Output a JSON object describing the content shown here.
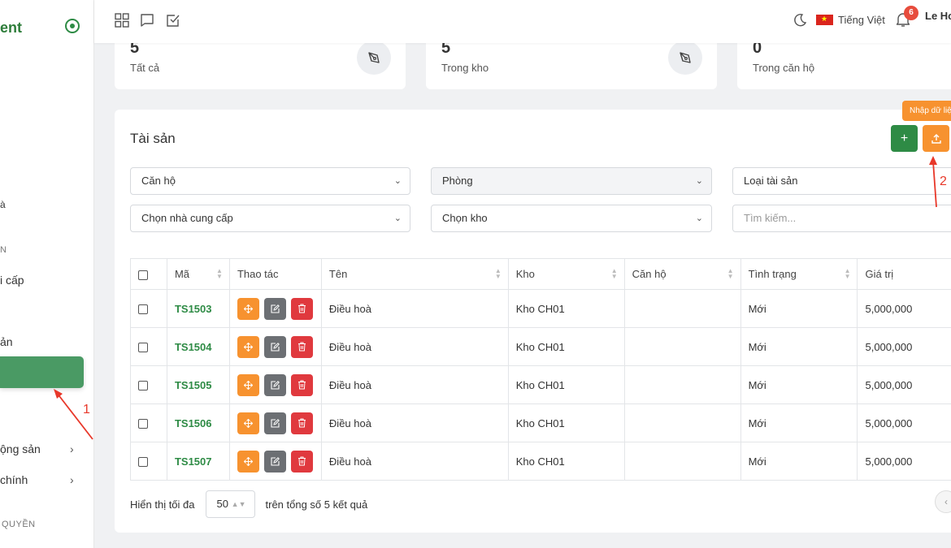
{
  "sidebar": {
    "brand": "ent",
    "items": [
      {
        "label": "à"
      },
      {
        "label": "N"
      },
      {
        "label": "i cấp"
      },
      {
        "label": "ản"
      },
      {
        "label": "ộng sản"
      },
      {
        "label": "chính"
      },
      {
        "label": "QUYỀN"
      }
    ]
  },
  "topbar": {
    "language": "Tiếng Việt",
    "notification_count": "6",
    "user_name": "Le Ho"
  },
  "stats": [
    {
      "value": "5",
      "label": "Tất cả"
    },
    {
      "value": "5",
      "label": "Trong kho"
    },
    {
      "value": "0",
      "label": "Trong căn hộ"
    }
  ],
  "card": {
    "title": "Tài sản",
    "add_label": "+",
    "tooltip": "Nhập dữ liệu"
  },
  "filters": {
    "apartment": "Căn hộ",
    "room": "Phòng",
    "asset_type": "Loại tài sản",
    "supplier": "Chọn nhà cung cấp",
    "warehouse": "Chọn kho",
    "search_placeholder": "Tìm kiếm..."
  },
  "table": {
    "headers": [
      "Mã",
      "Thao tác",
      "Tên",
      "Kho",
      "Căn hộ",
      "Tình trạng",
      "Giá trị"
    ],
    "rows": [
      {
        "code": "TS1503",
        "name": "Điều hoà",
        "warehouse": "Kho CH01",
        "apartment": "",
        "status": "Mới",
        "value": "5,000,000"
      },
      {
        "code": "TS1504",
        "name": "Điều hoà",
        "warehouse": "Kho CH01",
        "apartment": "",
        "status": "Mới",
        "value": "5,000,000"
      },
      {
        "code": "TS1505",
        "name": "Điều hoà",
        "warehouse": "Kho CH01",
        "apartment": "",
        "status": "Mới",
        "value": "5,000,000"
      },
      {
        "code": "TS1506",
        "name": "Điều hoà",
        "warehouse": "Kho CH01",
        "apartment": "",
        "status": "Mới",
        "value": "5,000,000"
      },
      {
        "code": "TS1507",
        "name": "Điều hoà",
        "warehouse": "Kho CH01",
        "apartment": "",
        "status": "Mới",
        "value": "5,000,000"
      }
    ]
  },
  "footer": {
    "show_label": "Hiển thị tối đa",
    "page_size": "50",
    "total_text": "trên tổng số 5 kết quả"
  },
  "annotations": {
    "first": "1",
    "second": "2"
  },
  "colors": {
    "brand_green": "#2e8b45",
    "accent_orange": "#f7922f",
    "danger_red": "#e0393e",
    "annotation_red": "#e8382a"
  }
}
